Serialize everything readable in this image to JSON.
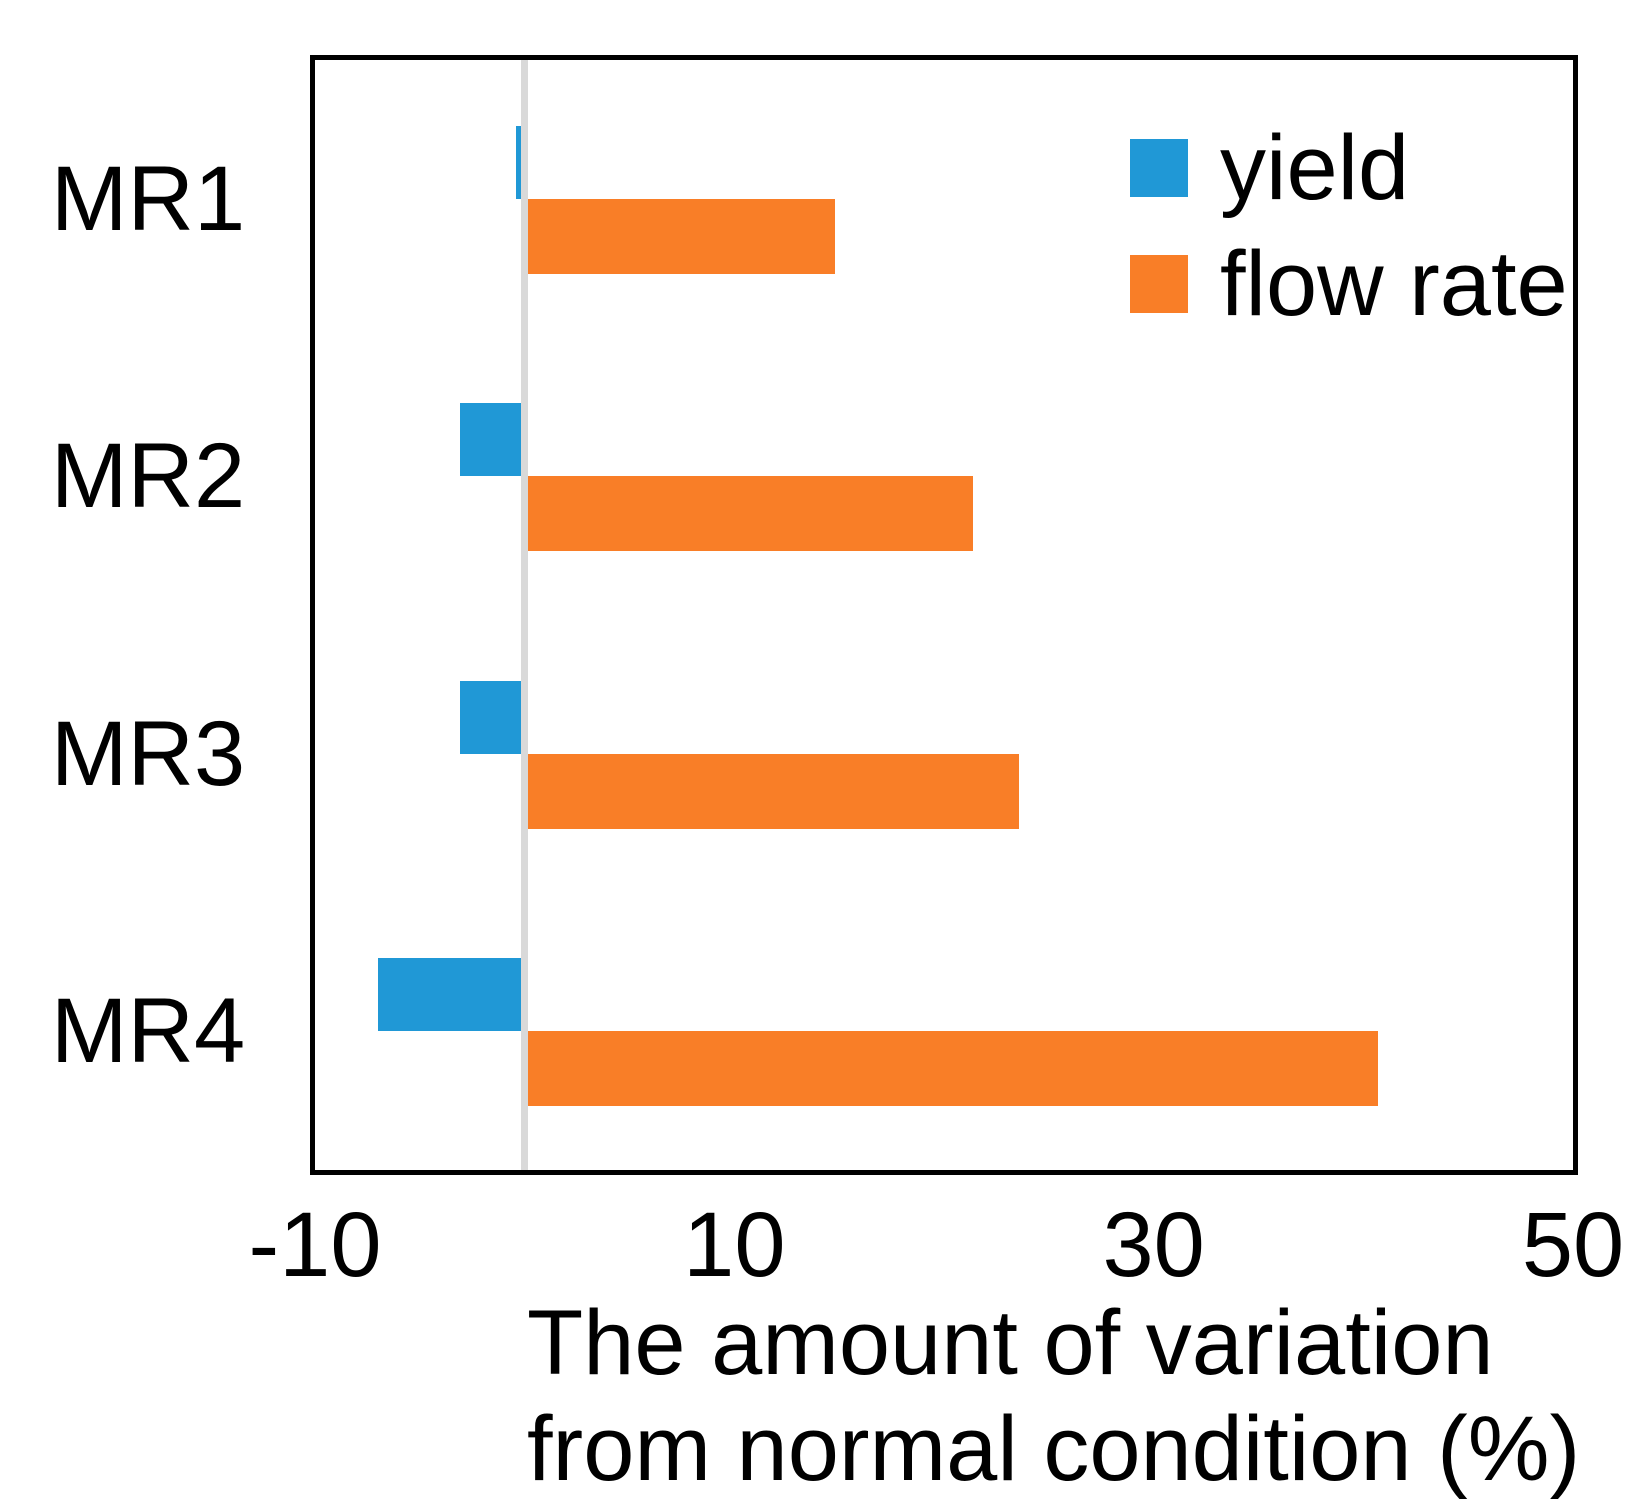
{
  "chart_data": {
    "type": "bar",
    "orientation": "horizontal",
    "title": "",
    "categories": [
      "MR1",
      "MR2",
      "MR3",
      "MR4"
    ],
    "series": [
      {
        "name": "yield",
        "color": "#2098d6",
        "values": [
          -0.4,
          -3.1,
          -3.1,
          -7.0
        ]
      },
      {
        "name": "flow rate",
        "color": "#f97e27",
        "values": [
          14.8,
          21.4,
          23.6,
          40.7
        ]
      }
    ],
    "xlabel_line1": "The amount of variation",
    "xlabel_line2": "from normal condition (%)",
    "xlim": [
      -10,
      50
    ],
    "xticks": [
      -10,
      10,
      30,
      50
    ],
    "legend_position": "top-right-inside",
    "grid": "zero-line-only"
  },
  "colors": {
    "zero_line": "#d9d9d9",
    "plot_border": "#000000",
    "background": "#ffffff",
    "text": "#000000"
  }
}
